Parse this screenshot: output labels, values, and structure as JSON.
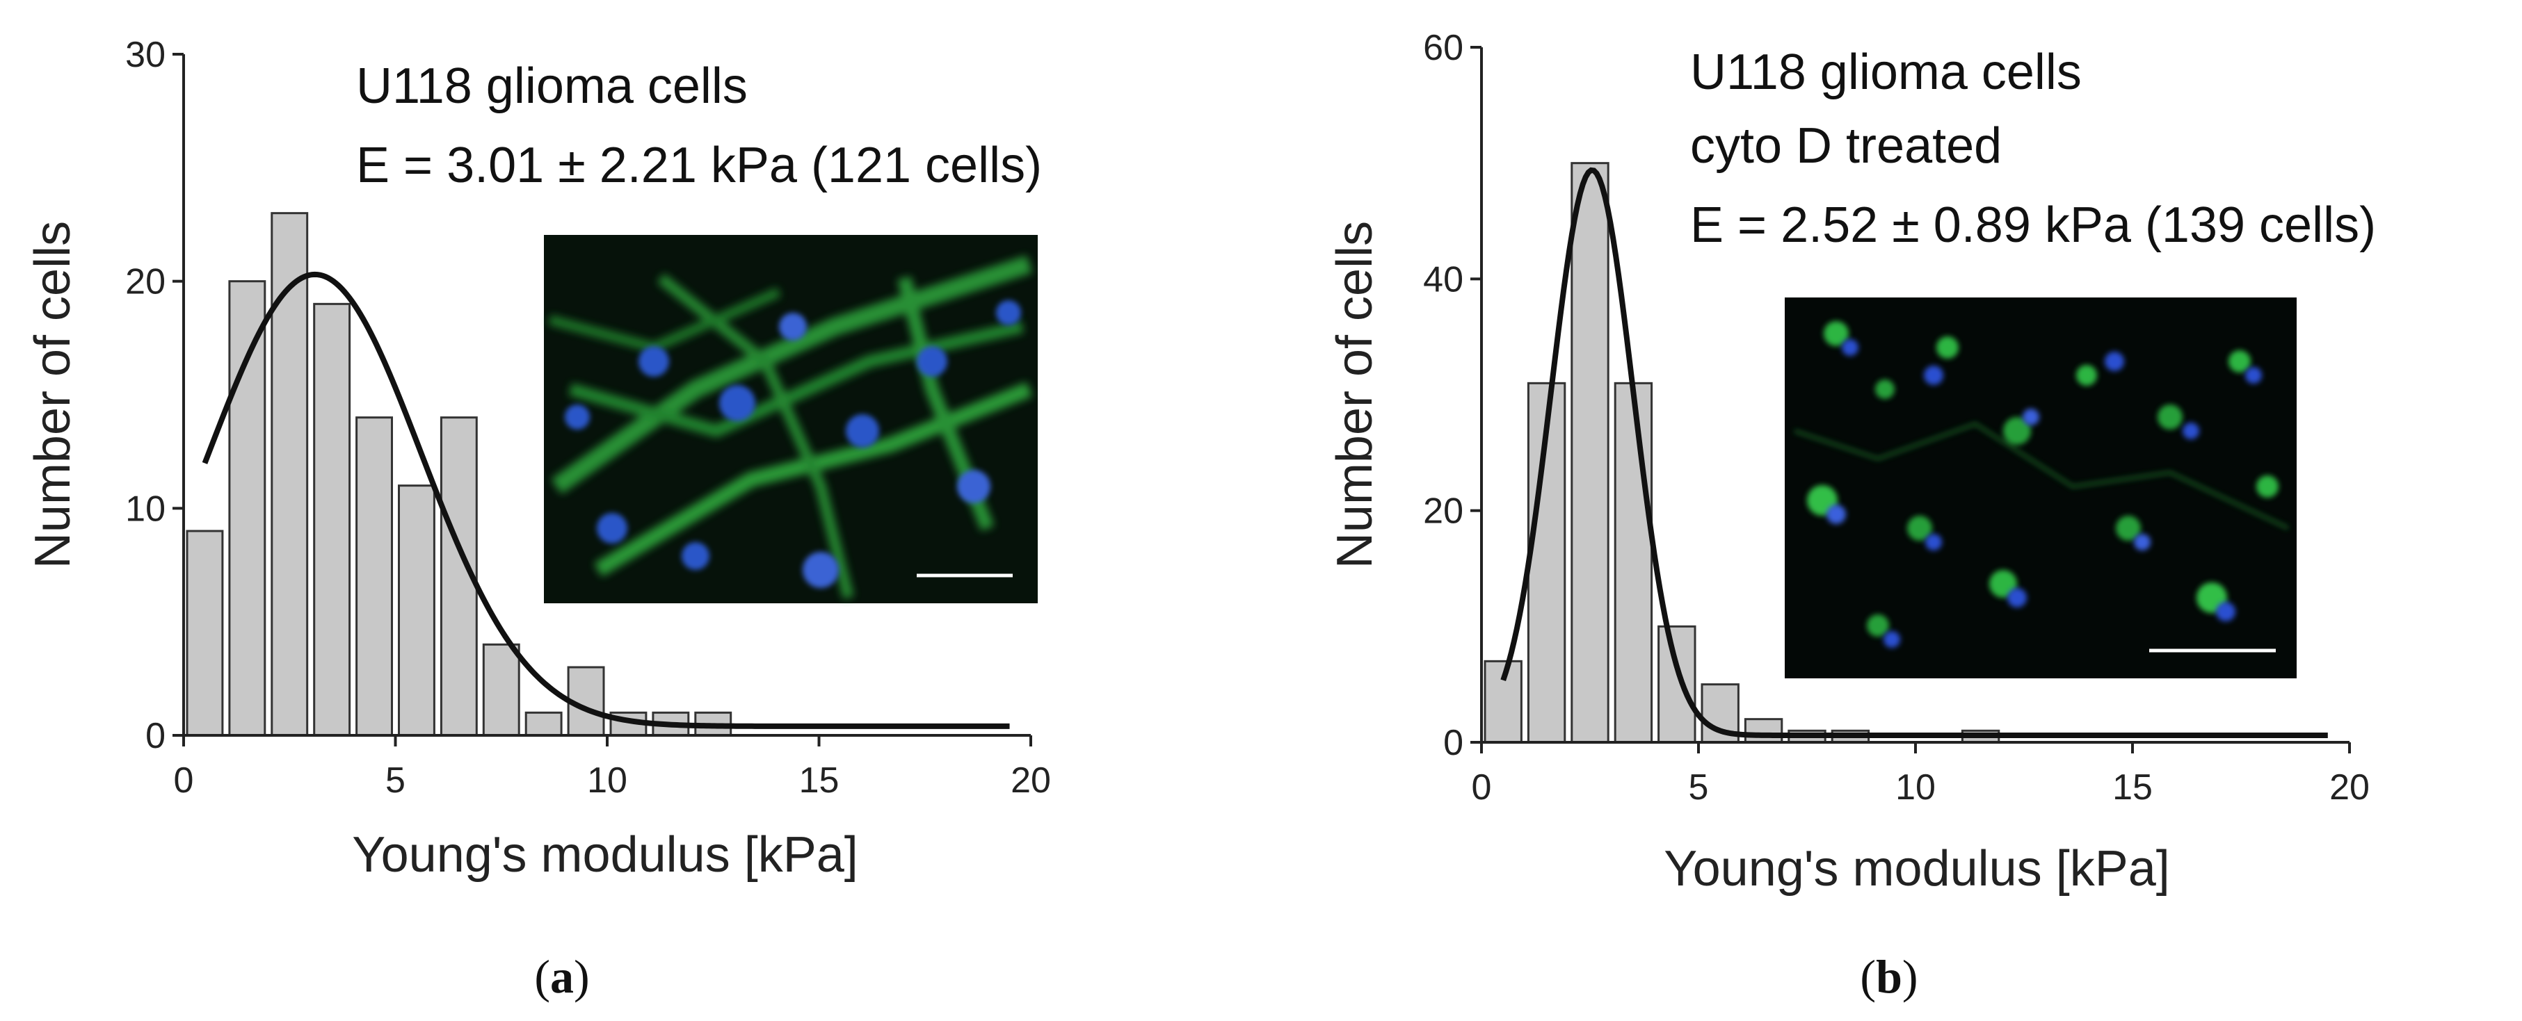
{
  "chart_data": [
    {
      "type": "bar",
      "panel_label": "a",
      "xlabel": "Young's modulus [kPa]",
      "ylabel": "Number of cells",
      "xlim": [
        0,
        20
      ],
      "ylim": [
        0,
        30
      ],
      "xticks": [
        0,
        5,
        10,
        15,
        20
      ],
      "yticks": [
        0,
        10,
        20,
        30
      ],
      "bin_width": 1,
      "bins": [
        {
          "x": 0.5,
          "count": 9
        },
        {
          "x": 1.5,
          "count": 20
        },
        {
          "x": 2.5,
          "count": 23
        },
        {
          "x": 3.5,
          "count": 19
        },
        {
          "x": 4.5,
          "count": 14
        },
        {
          "x": 5.5,
          "count": 11
        },
        {
          "x": 6.5,
          "count": 14
        },
        {
          "x": 7.5,
          "count": 4
        },
        {
          "x": 8.5,
          "count": 1
        },
        {
          "x": 9.5,
          "count": 3
        },
        {
          "x": 10.5,
          "count": 1
        },
        {
          "x": 11.5,
          "count": 1
        },
        {
          "x": 12.5,
          "count": 1
        }
      ],
      "fit": {
        "type": "gaussian",
        "center": 3.1,
        "sigma": 2.5,
        "amplitude": 19.9,
        "offset": 0.4,
        "x_range": [
          0.5,
          19.5
        ]
      },
      "annotation_lines": [
        "U118 glioma cells",
        "E = 3.01 ± 2.21 kPa (121 cells)"
      ],
      "inset": {
        "kind": "fluorescence-micrograph",
        "dominant_colors": [
          "#06120a",
          "#2fa63c",
          "#2a56c8"
        ],
        "scale_bar": "100 µm"
      },
      "colors": {
        "bar_fill": "#c8c8c8",
        "bar_stroke": "#333333",
        "fit_line": "#111111"
      }
    },
    {
      "type": "bar",
      "panel_label": "b",
      "xlabel": "Young's modulus [kPa]",
      "ylabel": "Number of cells",
      "xlim": [
        0,
        20
      ],
      "ylim": [
        0,
        60
      ],
      "xticks": [
        0,
        5,
        10,
        15,
        20
      ],
      "yticks": [
        0,
        20,
        40,
        60
      ],
      "bin_width": 1,
      "bins": [
        {
          "x": 0.5,
          "count": 7
        },
        {
          "x": 1.5,
          "count": 31
        },
        {
          "x": 2.5,
          "count": 50
        },
        {
          "x": 3.5,
          "count": 31
        },
        {
          "x": 4.5,
          "count": 10
        },
        {
          "x": 5.5,
          "count": 5
        },
        {
          "x": 6.5,
          "count": 2
        },
        {
          "x": 7.5,
          "count": 1
        },
        {
          "x": 8.5,
          "count": 1
        },
        {
          "x": 11.5,
          "count": 1
        }
      ],
      "fit": {
        "type": "gaussian",
        "center": 2.55,
        "sigma": 0.95,
        "amplitude": 48.8,
        "offset": 0.6,
        "x_range": [
          0.5,
          19.5
        ]
      },
      "annotation_lines": [
        "U118 glioma cells",
        "cyto D treated",
        "E = 2.52 ± 0.89 kPa (139 cells)"
      ],
      "inset": {
        "kind": "fluorescence-micrograph",
        "dominant_colors": [
          "#030806",
          "#33c84a",
          "#2a4fd0"
        ],
        "scale_bar": "100 µm"
      },
      "colors": {
        "bar_fill": "#c8c8c8",
        "bar_stroke": "#333333",
        "fit_line": "#111111"
      }
    }
  ]
}
